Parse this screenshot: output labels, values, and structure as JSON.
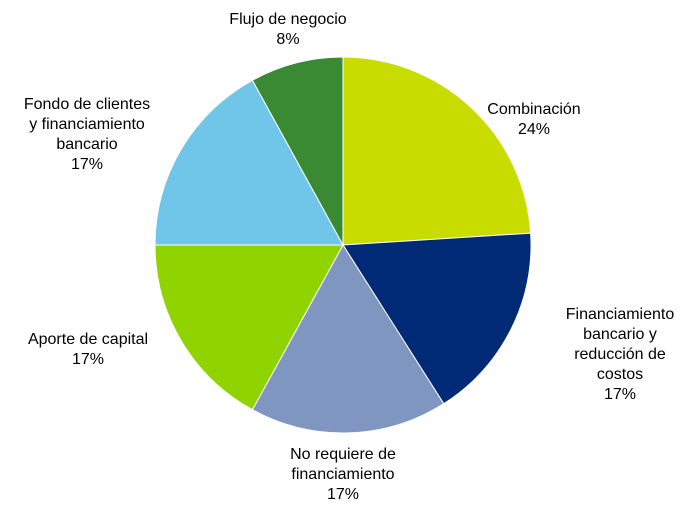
{
  "chart_data": {
    "type": "pie",
    "categories": [
      "Combinación",
      "Financiamiento\nbancario y\nreducción de\ncostos",
      "No requiere de\nfinanciamiento",
      "Aporte de capital",
      "Fondo de clientes\ny financiamiento\nbancario",
      "Flujo de negocio"
    ],
    "values": [
      24,
      17,
      17,
      17,
      17,
      8
    ],
    "value_labels": [
      "24%",
      "17%",
      "17%",
      "17%",
      "17%",
      "8%"
    ],
    "colors": [
      "#c8dc00",
      "#002a76",
      "#7f96c0",
      "#8fd400",
      "#70c6e8",
      "#3a8a33"
    ]
  }
}
